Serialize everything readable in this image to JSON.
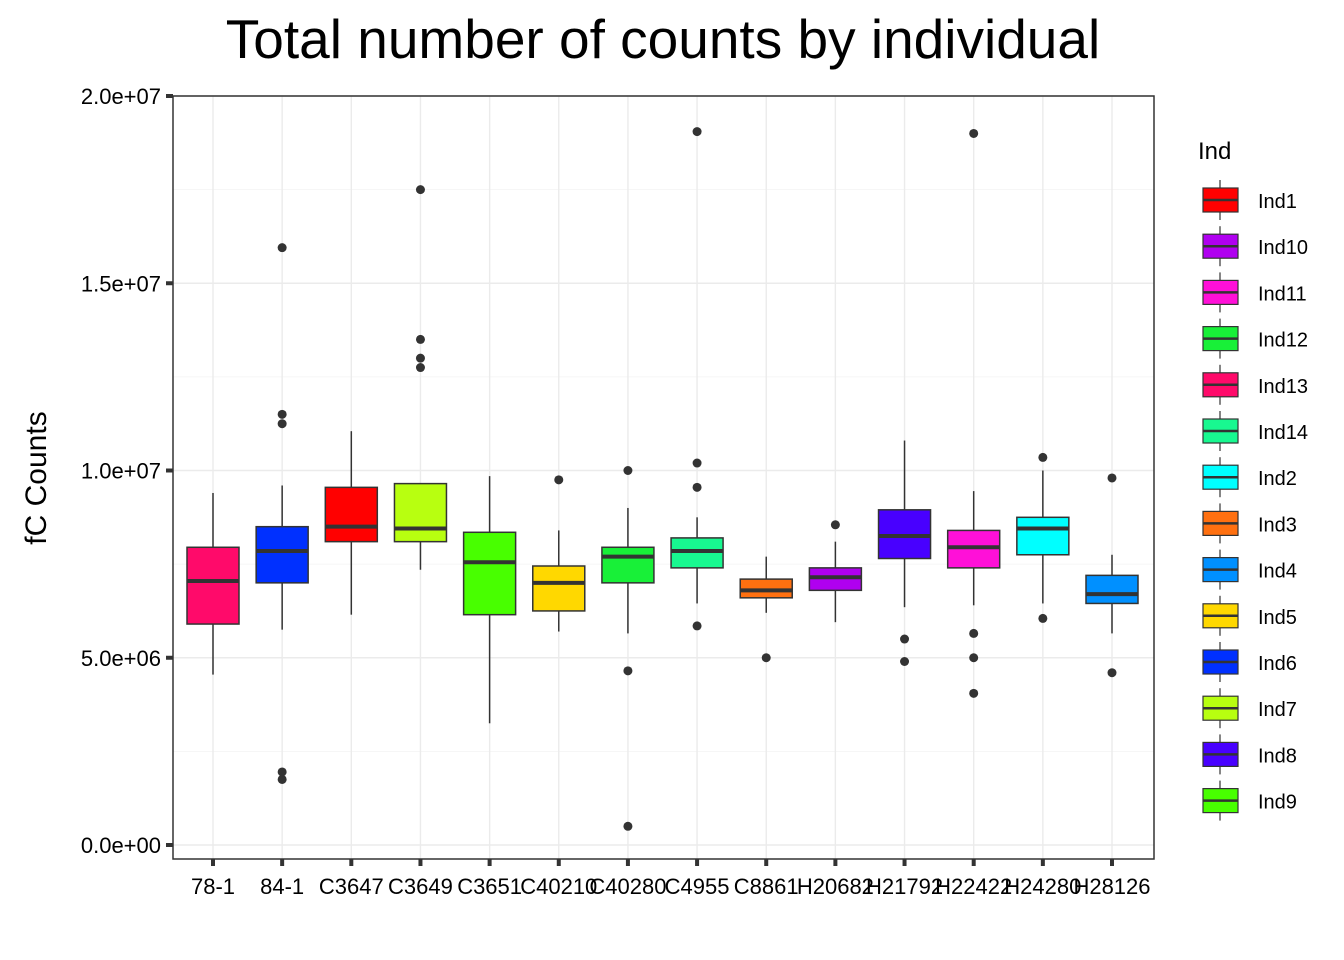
{
  "chart_data": {
    "type": "box",
    "title": "Total number of counts by individual",
    "xlabel": "",
    "ylabel": "fC Counts",
    "ylim": [
      0,
      20000000
    ],
    "yticks": [
      0,
      5000000,
      10000000,
      15000000,
      20000000
    ],
    "ytick_labels": [
      "0.0e+00",
      "5.0e+06",
      "1.0e+07",
      "1.5e+07",
      "2.0e+07"
    ],
    "grid": true,
    "legend": {
      "title": "Ind",
      "placement": "right",
      "entries": [
        {
          "label": "Ind1",
          "color": "#FF0000"
        },
        {
          "label": "Ind10",
          "color": "#B000F0"
        },
        {
          "label": "Ind11",
          "color": "#FF10D8"
        },
        {
          "label": "Ind12",
          "color": "#18F038"
        },
        {
          "label": "Ind13",
          "color": "#FF0A6A"
        },
        {
          "label": "Ind14",
          "color": "#18F890"
        },
        {
          "label": "Ind2",
          "color": "#00FFFF"
        },
        {
          "label": "Ind3",
          "color": "#FF7010"
        },
        {
          "label": "Ind4",
          "color": "#0090FF"
        },
        {
          "label": "Ind5",
          "color": "#FFD800"
        },
        {
          "label": "Ind6",
          "color": "#0030FF"
        },
        {
          "label": "Ind7",
          "color": "#B8FF10"
        },
        {
          "label": "Ind8",
          "color": "#4800FF"
        },
        {
          "label": "Ind9",
          "color": "#48FF00"
        }
      ]
    },
    "categories": [
      "78-1",
      "84-1",
      "C3647",
      "C3649",
      "C3651",
      "C40210",
      "C40280",
      "C4955",
      "C8861",
      "H20682",
      "H21792",
      "H22422",
      "H24280",
      "H28126"
    ],
    "boxes": [
      {
        "category": "78-1",
        "ind": "Ind13",
        "color": "#FF0A6A",
        "whisker_low": 4550000,
        "q1": 5900000,
        "median": 7050000,
        "q3": 7950000,
        "whisker_high": 9400000,
        "outliers": []
      },
      {
        "category": "84-1",
        "ind": "Ind6",
        "color": "#0030FF",
        "whisker_low": 5750000,
        "q1": 7000000,
        "median": 7850000,
        "q3": 8500000,
        "whisker_high": 9600000,
        "outliers": [
          15950000,
          11500000,
          11250000,
          1950000,
          1750000
        ]
      },
      {
        "category": "C3647",
        "ind": "Ind1",
        "color": "#FF0000",
        "whisker_low": 6150000,
        "q1": 8100000,
        "median": 8500000,
        "q3": 9550000,
        "whisker_high": 11050000,
        "outliers": []
      },
      {
        "category": "C3649",
        "ind": "Ind7",
        "color": "#B8FF10",
        "whisker_low": 7350000,
        "q1": 8100000,
        "median": 8450000,
        "q3": 9650000,
        "whisker_high": 9650000,
        "outliers": [
          17500000,
          13500000,
          13000000,
          12750000
        ]
      },
      {
        "category": "C3651",
        "ind": "Ind9",
        "color": "#48FF00",
        "whisker_low": 3250000,
        "q1": 6150000,
        "median": 7550000,
        "q3": 8350000,
        "whisker_high": 9850000,
        "outliers": []
      },
      {
        "category": "C40210",
        "ind": "Ind5",
        "color": "#FFD800",
        "whisker_low": 5700000,
        "q1": 6250000,
        "median": 7000000,
        "q3": 7450000,
        "whisker_high": 8400000,
        "outliers": [
          9750000
        ]
      },
      {
        "category": "C40280",
        "ind": "Ind12",
        "color": "#18F038",
        "whisker_low": 5650000,
        "q1": 7000000,
        "median": 7700000,
        "q3": 7950000,
        "whisker_high": 9000000,
        "outliers": [
          10000000,
          4650000,
          500000
        ]
      },
      {
        "category": "C4955",
        "ind": "Ind14",
        "color": "#18F890",
        "whisker_low": 6450000,
        "q1": 7400000,
        "median": 7850000,
        "q3": 8200000,
        "whisker_high": 8750000,
        "outliers": [
          19050000,
          10200000,
          9550000,
          5850000
        ]
      },
      {
        "category": "C8861",
        "ind": "Ind3",
        "color": "#FF7010",
        "whisker_low": 6200000,
        "q1": 6600000,
        "median": 6800000,
        "q3": 7100000,
        "whisker_high": 7700000,
        "outliers": [
          5000000
        ]
      },
      {
        "category": "H20682",
        "ind": "Ind10",
        "color": "#B000F0",
        "whisker_low": 5950000,
        "q1": 6800000,
        "median": 7150000,
        "q3": 7400000,
        "whisker_high": 8100000,
        "outliers": [
          8550000
        ]
      },
      {
        "category": "H21792",
        "ind": "Ind8",
        "color": "#4800FF",
        "whisker_low": 6350000,
        "q1": 7650000,
        "median": 8250000,
        "q3": 8950000,
        "whisker_high": 10800000,
        "outliers": [
          5500000,
          4900000
        ]
      },
      {
        "category": "H22422",
        "ind": "Ind11",
        "color": "#FF10D8",
        "whisker_low": 6400000,
        "q1": 7400000,
        "median": 7950000,
        "q3": 8400000,
        "whisker_high": 9450000,
        "outliers": [
          19000000,
          5650000,
          5000000,
          4050000
        ]
      },
      {
        "category": "H24280",
        "ind": "Ind2",
        "color": "#00FFFF",
        "whisker_low": 6450000,
        "q1": 7750000,
        "median": 8450000,
        "q3": 8750000,
        "whisker_high": 10000000,
        "outliers": [
          10350000,
          6050000
        ]
      },
      {
        "category": "H28126",
        "ind": "Ind4",
        "color": "#0090FF",
        "whisker_low": 5650000,
        "q1": 6450000,
        "median": 6700000,
        "q3": 7200000,
        "whisker_high": 7750000,
        "outliers": [
          9800000,
          4600000
        ]
      }
    ]
  }
}
